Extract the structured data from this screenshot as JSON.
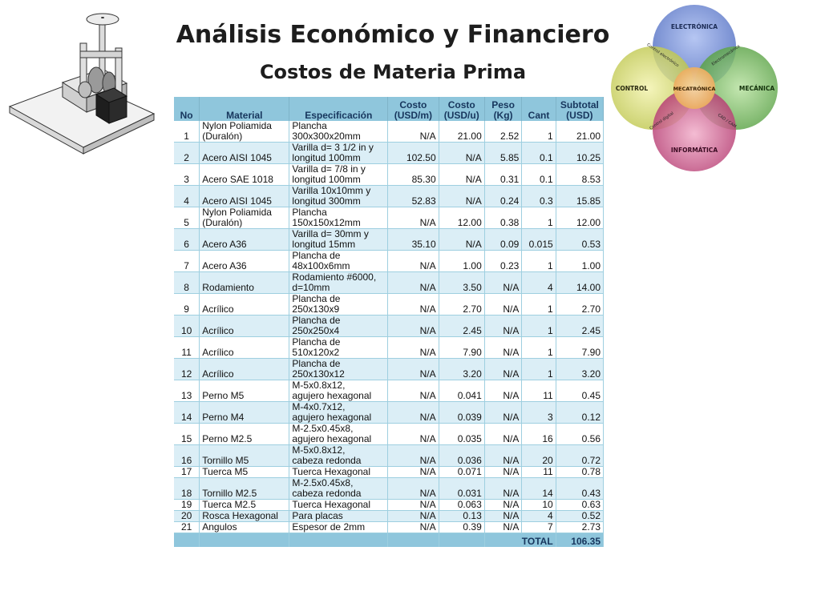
{
  "title": "Análisis Económico y Financiero",
  "subtitle": "Costos de Materia Prima",
  "venn": {
    "center": "MECATRÓNICA",
    "circles": [
      "ELECTRÓNICA",
      "CONTROL",
      "MECÁNICA",
      "INFORMÁTICA"
    ],
    "overlaps": [
      "Control electrónico",
      "Electromecánica",
      "Control digital",
      "CAD / CAM"
    ],
    "colors": {
      "top": "#5b79c9",
      "left": "#c9d35a",
      "right": "#6bb04f",
      "bottom": "#c2437a"
    }
  },
  "table": {
    "headers": [
      [
        "No"
      ],
      [
        "Material"
      ],
      [
        "Especificación"
      ],
      [
        "Costo",
        "(USD/m)"
      ],
      [
        "Costo",
        "(USD/u)"
      ],
      [
        "Peso",
        "(Kg)"
      ],
      [
        "Cant"
      ],
      [
        "Subtotal",
        "(USD)"
      ]
    ],
    "rows": [
      [
        "1",
        [
          "Nylon Poliamida",
          "(Duralón)"
        ],
        [
          "Plancha",
          "300x300x20mm"
        ],
        "N/A",
        "21.00",
        "2.52",
        "1",
        "21.00"
      ],
      [
        "2",
        [
          "Acero AISI 1045"
        ],
        [
          "Varilla d= 3 1/2 in  y",
          "longitud 100mm"
        ],
        "102.50",
        "N/A",
        "5.85",
        "0.1",
        "10.25"
      ],
      [
        "3",
        [
          "Acero SAE 1018"
        ],
        [
          "Varilla d= 7/8 in y",
          "longitud 100mm"
        ],
        "85.30",
        "N/A",
        "0.31",
        "0.1",
        "8.53"
      ],
      [
        "4",
        [
          "Acero AISI 1045"
        ],
        [
          "Varilla 10x10mm y",
          "longitud 300mm"
        ],
        "52.83",
        "N/A",
        "0.24",
        "0.3",
        "15.85"
      ],
      [
        "5",
        [
          "Nylon Poliamida",
          "(Duralón)"
        ],
        [
          "Plancha",
          "150x150x12mm"
        ],
        "N/A",
        "12.00",
        "0.38",
        "1",
        "12.00"
      ],
      [
        "6",
        [
          "Acero A36"
        ],
        [
          "Varilla d= 30mm y",
          "longitud 15mm"
        ],
        "35.10",
        "N/A",
        "0.09",
        "0.015",
        "0.53"
      ],
      [
        "7",
        [
          "Acero A36"
        ],
        [
          "Plancha de",
          "48x100x6mm"
        ],
        "N/A",
        "1.00",
        "0.23",
        "1",
        "1.00"
      ],
      [
        "8",
        [
          "Rodamiento"
        ],
        [
          "Rodamiento #6000,",
          "d=10mm"
        ],
        "N/A",
        "3.50",
        "N/A",
        "4",
        "14.00"
      ],
      [
        "9",
        [
          "Acrílico"
        ],
        [
          "Plancha de",
          "250x130x9"
        ],
        "N/A",
        "2.70",
        "N/A",
        "1",
        "2.70"
      ],
      [
        "10",
        [
          "Acrílico"
        ],
        [
          "Plancha de",
          "250x250x4"
        ],
        "N/A",
        "2.45",
        "N/A",
        "1",
        "2.45"
      ],
      [
        "11",
        [
          "Acrílico"
        ],
        [
          "Plancha de",
          "510x120x2"
        ],
        "N/A",
        "7.90",
        "N/A",
        "1",
        "7.90"
      ],
      [
        "12",
        [
          "Acrílico"
        ],
        [
          "Plancha de",
          "250x130x12"
        ],
        "N/A",
        "3.20",
        "N/A",
        "1",
        "3.20"
      ],
      [
        "13",
        [
          "Perno M5"
        ],
        [
          "M-5x0.8x12,",
          "agujero hexagonal"
        ],
        "N/A",
        "0.041",
        "N/A",
        "11",
        "0.45"
      ],
      [
        "14",
        [
          "Perno M4"
        ],
        [
          "M-4x0.7x12,",
          "agujero hexagonal"
        ],
        "N/A",
        "0.039",
        "N/A",
        "3",
        "0.12"
      ],
      [
        "15",
        [
          "Perno M2.5"
        ],
        [
          "M-2.5x0.45x8,",
          "agujero hexagonal"
        ],
        "N/A",
        "0.035",
        "N/A",
        "16",
        "0.56"
      ],
      [
        "16",
        [
          "Tornillo M5"
        ],
        [
          "M-5x0.8x12,",
          "cabeza redonda"
        ],
        "N/A",
        "0.036",
        "N/A",
        "20",
        "0.72"
      ],
      [
        "17",
        [
          "Tuerca M5"
        ],
        [
          "Tuerca Hexagonal"
        ],
        "N/A",
        "0.071",
        "N/A",
        "11",
        "0.78"
      ],
      [
        "18",
        [
          "Tornillo M2.5"
        ],
        [
          "M-2.5x0.45x8,",
          "cabeza redonda"
        ],
        "N/A",
        "0.031",
        "N/A",
        "14",
        "0.43"
      ],
      [
        "19",
        [
          "Tuerca M2.5"
        ],
        [
          "Tuerca Hexagonal"
        ],
        "N/A",
        "0.063",
        "N/A",
        "10",
        "0.63"
      ],
      [
        "20",
        [
          "Rosca Hexagonal"
        ],
        [
          "Para placas"
        ],
        "N/A",
        "0.13",
        "N/A",
        "4",
        "0.52"
      ],
      [
        "21",
        [
          "Angulos"
        ],
        [
          "Espesor de 2mm"
        ],
        "N/A",
        "0.39",
        "N/A",
        "7",
        "2.73"
      ]
    ],
    "total_label": "TOTAL",
    "total_value": "106.35"
  }
}
